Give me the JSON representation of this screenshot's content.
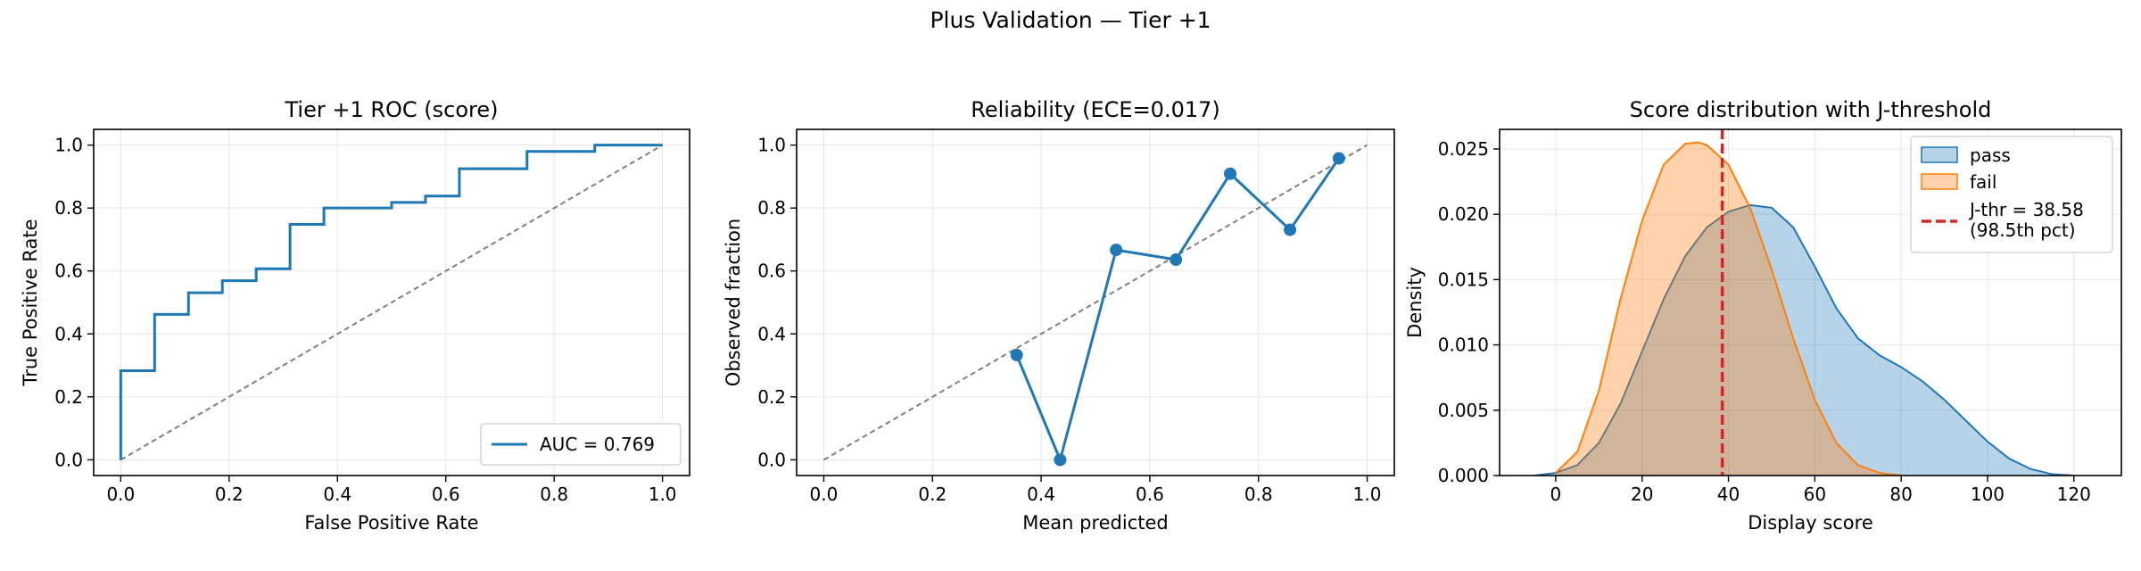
{
  "suptitle": "Plus Validation — Tier +1",
  "colors": {
    "blue": "#1f77b4",
    "orange": "#ff7f0e",
    "red": "#d62728",
    "diag": "#808080"
  },
  "chart_data": [
    {
      "type": "line",
      "title": "Tier +1 ROC (score)",
      "xlabel": "False Positive Rate",
      "ylabel": "True Positive Rate",
      "xlim": [
        -0.05,
        1.05
      ],
      "ylim": [
        -0.05,
        1.05
      ],
      "xticks": [
        0.0,
        0.2,
        0.4,
        0.6,
        0.8,
        1.0
      ],
      "yticks": [
        0.0,
        0.2,
        0.4,
        0.6,
        0.8,
        1.0
      ],
      "grid": true,
      "legend": "lower right",
      "series": [
        {
          "name": "AUC = 0.769",
          "x": [
            0,
            0,
            0.0625,
            0.0625,
            0.125,
            0.125,
            0.1875,
            0.1875,
            0.25,
            0.25,
            0.3125,
            0.3125,
            0.375,
            0.375,
            0.5,
            0.5,
            0.5625,
            0.5625,
            0.625,
            0.625,
            0.75,
            0.75,
            0.875,
            0.875,
            1.0
          ],
          "y": [
            0,
            0.283,
            0.283,
            0.462,
            0.462,
            0.531,
            0.531,
            0.569,
            0.569,
            0.607,
            0.607,
            0.748,
            0.748,
            0.8,
            0.8,
            0.818,
            0.818,
            0.838,
            0.838,
            0.925,
            0.925,
            0.98,
            0.98,
            1.0,
            1.0
          ]
        }
      ],
      "reference_line": {
        "x": [
          0,
          1
        ],
        "y": [
          0,
          1
        ],
        "style": "dashed"
      }
    },
    {
      "type": "line",
      "title": "Reliability (ECE=0.017)",
      "xlabel": "Mean predicted",
      "ylabel": "Observed fraction",
      "xlim": [
        -0.05,
        1.05
      ],
      "ylim": [
        -0.05,
        1.05
      ],
      "xticks": [
        0.0,
        0.2,
        0.4,
        0.6,
        0.8,
        1.0
      ],
      "yticks": [
        0.0,
        0.2,
        0.4,
        0.6,
        0.8,
        1.0
      ],
      "grid": true,
      "series": [
        {
          "x": [
            0.355,
            0.435,
            0.538,
            0.648,
            0.748,
            0.858,
            0.948
          ],
          "y": [
            0.333,
            0.0,
            0.667,
            0.636,
            0.909,
            0.731,
            0.958
          ]
        }
      ],
      "reference_line": {
        "x": [
          0,
          1
        ],
        "y": [
          0,
          1
        ],
        "style": "dashed"
      }
    },
    {
      "type": "area",
      "title": "Score distribution with J-threshold",
      "xlabel": "Display score",
      "ylabel": "Density",
      "xlim": [
        -13,
        131
      ],
      "ylim": [
        0,
        0.0265
      ],
      "xticks": [
        0,
        20,
        40,
        60,
        80,
        100,
        120
      ],
      "yticks": [
        0.0,
        0.005,
        0.01,
        0.015,
        0.02,
        0.025
      ],
      "grid": true,
      "legend": "upper right",
      "series": [
        {
          "name": "pass",
          "x": [
            -5,
            0,
            5,
            10,
            15,
            20,
            25,
            30,
            35,
            40,
            45,
            50,
            55,
            60,
            65,
            70,
            75,
            80,
            85,
            90,
            95,
            100,
            105,
            110,
            115,
            120
          ],
          "y": [
            0.0,
            0.0002,
            0.0008,
            0.0025,
            0.0055,
            0.0095,
            0.0135,
            0.0168,
            0.019,
            0.0202,
            0.0207,
            0.0205,
            0.019,
            0.016,
            0.0128,
            0.0105,
            0.0092,
            0.0083,
            0.0072,
            0.0058,
            0.0042,
            0.0026,
            0.0013,
            0.0005,
            0.0001,
            0.0
          ]
        },
        {
          "name": "fail",
          "x": [
            0,
            5,
            10,
            15,
            20,
            25,
            30,
            33,
            35,
            40,
            45,
            50,
            55,
            60,
            65,
            70,
            75,
            80
          ],
          "y": [
            0.0002,
            0.0018,
            0.0065,
            0.0135,
            0.0195,
            0.0238,
            0.0254,
            0.0255,
            0.0253,
            0.0238,
            0.0205,
            0.0158,
            0.0105,
            0.0058,
            0.0025,
            0.0008,
            0.0002,
            0.0
          ]
        }
      ],
      "threshold": {
        "x": 38.58,
        "label_line1": "J-thr = 38.58",
        "label_line2": "(98.5th pct)"
      }
    }
  ]
}
